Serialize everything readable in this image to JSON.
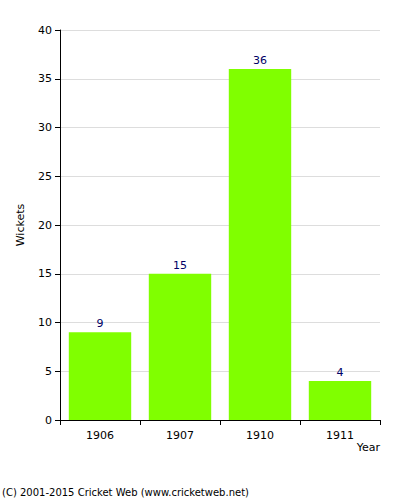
{
  "chart_data": {
    "type": "bar",
    "x_label": "Year",
    "y_label": "Wickets",
    "categories": [
      "1906",
      "1907",
      "1910",
      "1911"
    ],
    "values": [
      9,
      15,
      36,
      4
    ],
    "color": "#80ff00",
    "ylim": [
      0,
      40
    ],
    "yticks": [
      0,
      5,
      10,
      15,
      20,
      25,
      30,
      35,
      40
    ],
    "grid": true,
    "data_labels": true,
    "annotation": "(C) 2001-2015 Cricket Web (www.cricketweb.net)"
  }
}
